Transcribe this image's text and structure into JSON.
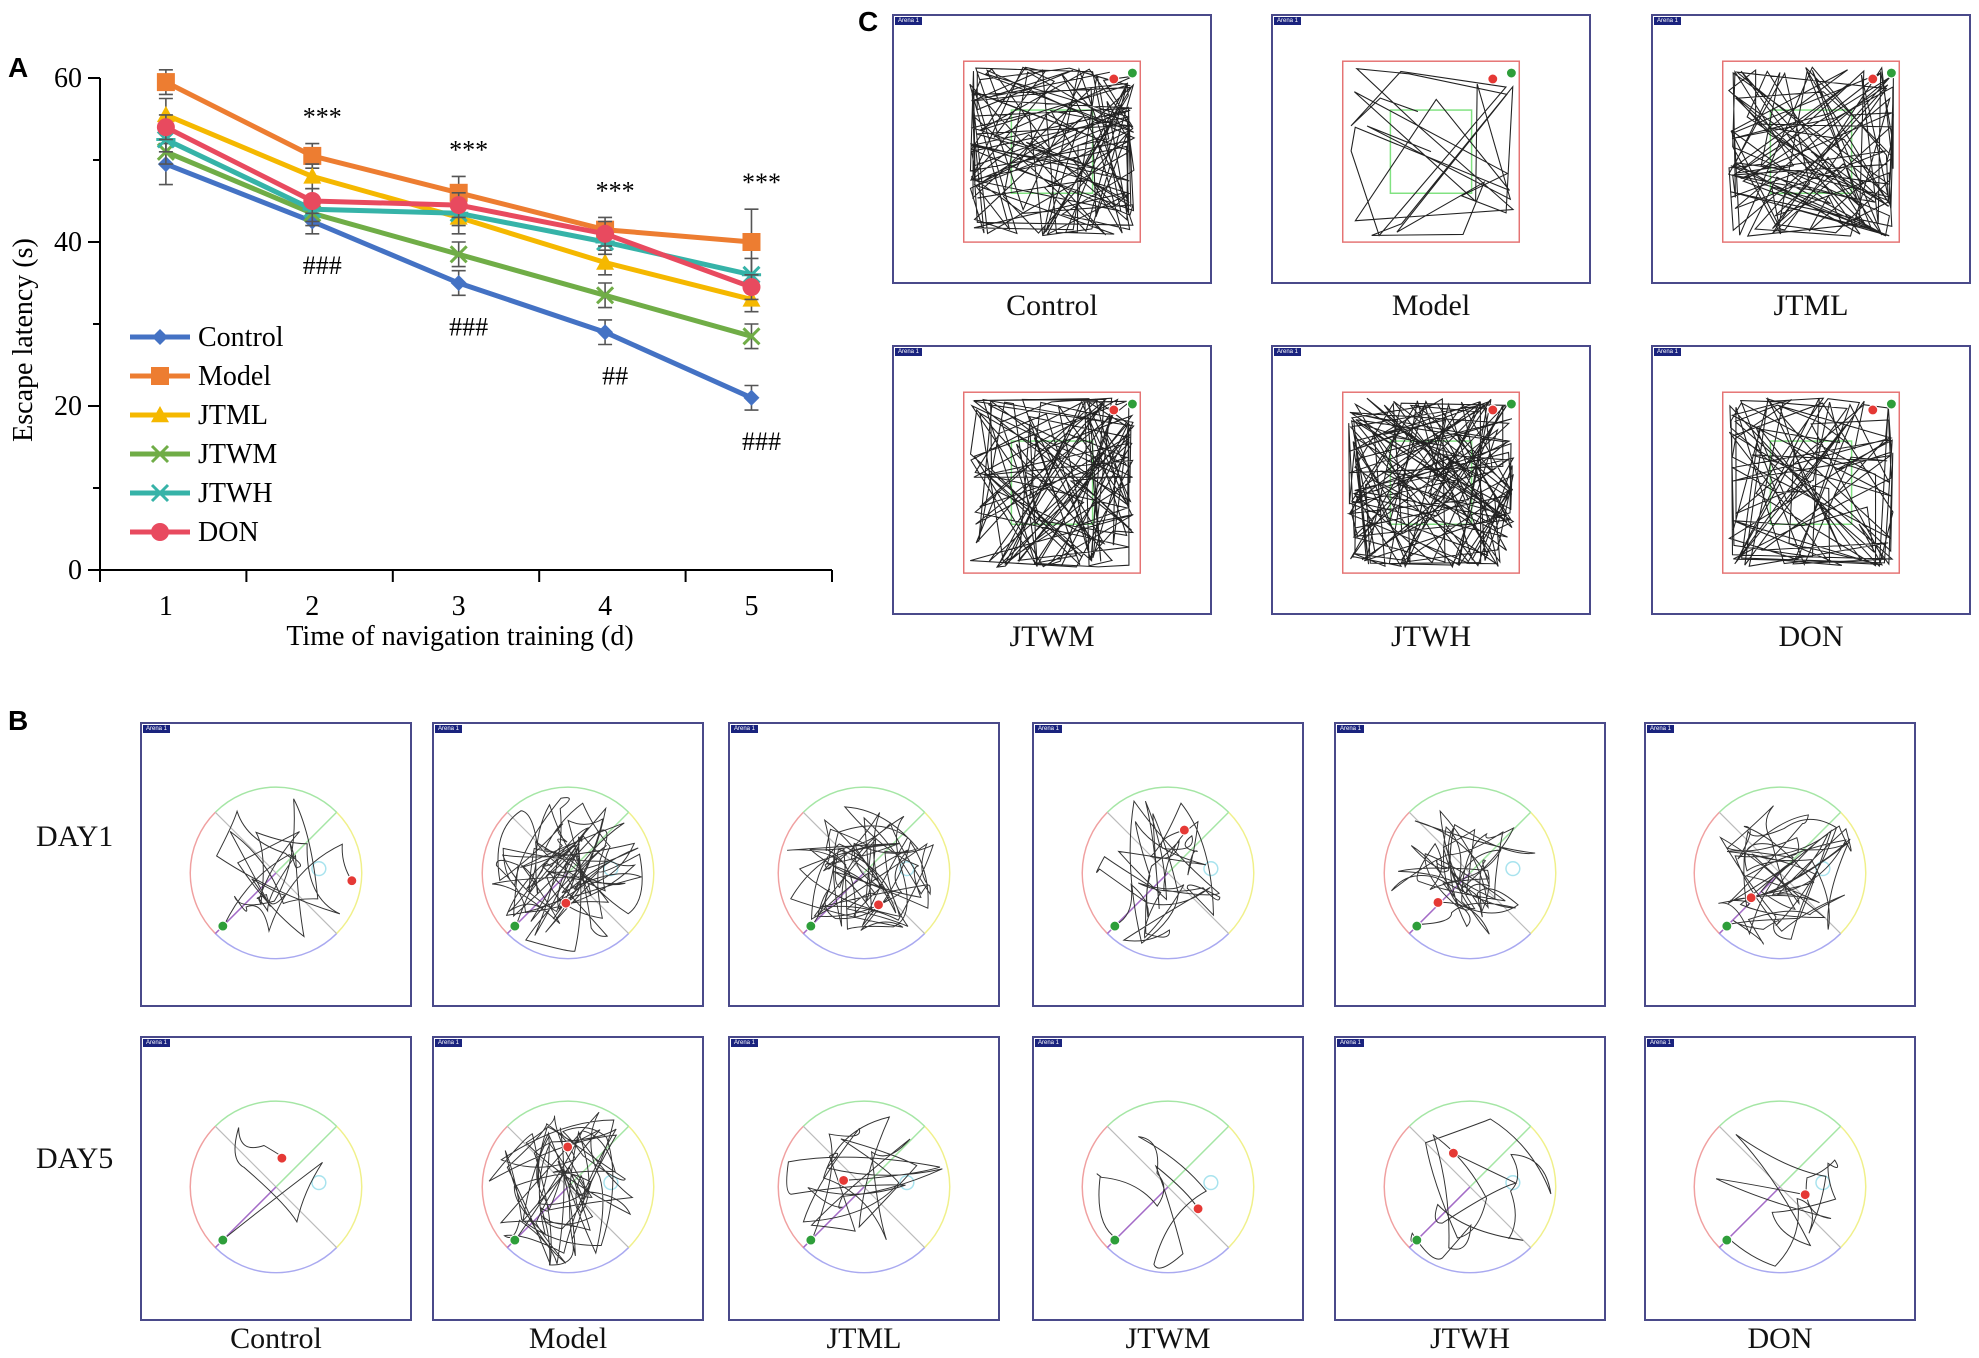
{
  "panels": {
    "a": "A",
    "b": "B",
    "c": "C"
  },
  "chart_data": {
    "type": "line",
    "xlabel": "Time of navigation training (d)",
    "ylabel": "Escape latency (s)",
    "x": [
      1,
      2,
      3,
      4,
      5
    ],
    "xlim": [
      0.55,
      5.55
    ],
    "ylim": [
      0,
      60
    ],
    "yticks": [
      0,
      20,
      40,
      60
    ],
    "legend_position": "lower-left",
    "series": [
      {
        "name": "Control",
        "marker": "diamond",
        "color": "#4472c4",
        "values": [
          49.5,
          42.5,
          35.0,
          29.0,
          21.0
        ],
        "errors": [
          2.5,
          1.5,
          1.5,
          1.5,
          1.5
        ]
      },
      {
        "name": "Model",
        "marker": "square",
        "color": "#ed7d31",
        "values": [
          59.5,
          50.5,
          46.0,
          41.5,
          40.0
        ],
        "errors": [
          1.5,
          1.5,
          2.0,
          1.5,
          4.0
        ]
      },
      {
        "name": "JTML",
        "marker": "triangle",
        "color": "#f5b800",
        "values": [
          55.5,
          48.0,
          43.0,
          37.5,
          33.0
        ],
        "errors": [
          2.0,
          1.5,
          2.0,
          1.5,
          1.5
        ]
      },
      {
        "name": "JTWM",
        "marker": "x",
        "color": "#70ad47",
        "values": [
          51.0,
          43.5,
          38.5,
          33.5,
          28.5
        ],
        "errors": [
          1.5,
          1.5,
          1.5,
          1.5,
          1.5
        ]
      },
      {
        "name": "JTWH",
        "marker": "star",
        "color": "#36b3a8",
        "values": [
          52.5,
          44.0,
          43.5,
          40.0,
          36.0
        ],
        "errors": [
          1.5,
          1.5,
          1.5,
          1.5,
          2.0
        ]
      },
      {
        "name": "DON",
        "marker": "circle",
        "color": "#e84a5f",
        "values": [
          54.0,
          45.0,
          44.5,
          41.0,
          34.5
        ],
        "errors": [
          1.5,
          1.5,
          1.5,
          1.5,
          1.5
        ]
      }
    ],
    "annotations_top": [
      "",
      "***",
      "***",
      "***",
      "***"
    ],
    "annotations_bottom": [
      "",
      "###",
      "###",
      "##",
      "###"
    ]
  },
  "panel_b": {
    "rows": [
      "DAY1",
      "DAY5"
    ],
    "groups": [
      "Control",
      "Model",
      "JTML",
      "JTWM",
      "JTWH",
      "DON"
    ],
    "arena_tag": "Arena 1"
  },
  "panel_c": {
    "groups": [
      "Control",
      "Model",
      "JTML",
      "JTWM",
      "JTWH",
      "DON"
    ],
    "arena_tag": "Arena 1"
  }
}
